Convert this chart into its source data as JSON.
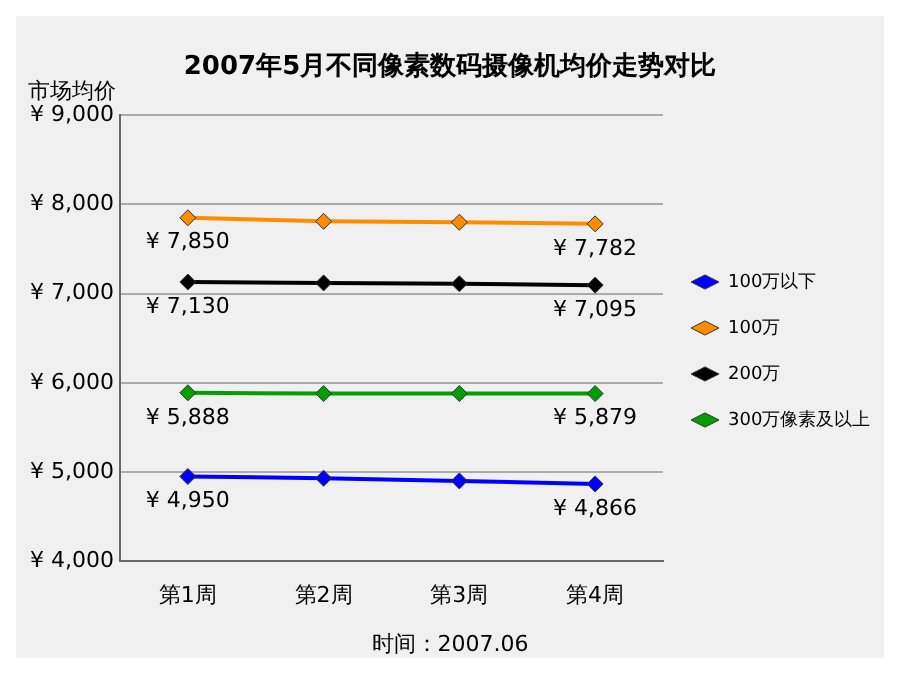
{
  "chart_data": {
    "type": "line",
    "title": "2007年5月不同像素数码摄像机均价走势对比",
    "ylabel": "市场均价",
    "annotations": [
      "时间：2007.06"
    ],
    "categories": [
      "第1周",
      "第2周",
      "第3周",
      "第4周"
    ],
    "series": [
      {
        "name": "100万以下",
        "color": "#0000ff",
        "values": [
          4950,
          4930,
          4900,
          4866
        ],
        "value_labels": [
          "¥ 4,950",
          null,
          null,
          "¥ 4,866"
        ]
      },
      {
        "name": "100万",
        "color": "#ff8c00",
        "values": [
          7850,
          7810,
          7800,
          7782
        ],
        "value_labels": [
          "¥ 7,850",
          null,
          null,
          "¥ 7,782"
        ]
      },
      {
        "name": "200万",
        "color": "#000000",
        "values": [
          7130,
          7120,
          7110,
          7095
        ],
        "value_labels": [
          "¥ 7,130",
          null,
          null,
          "¥ 7,095"
        ]
      },
      {
        "name": "300万像素及以上",
        "color": "#00a000",
        "values": [
          5888,
          5880,
          5880,
          5879
        ],
        "value_labels": [
          "¥ 5,888",
          null,
          null,
          "¥ 5,879"
        ]
      }
    ],
    "ylim": [
      4000,
      9000
    ],
    "yticks": [
      {
        "value": 4000,
        "label": "¥ 4,000"
      },
      {
        "value": 5000,
        "label": "¥ 5,000"
      },
      {
        "value": 6000,
        "label": "¥ 6,000"
      },
      {
        "value": 7000,
        "label": "¥ 7,000"
      },
      {
        "value": 8000,
        "label": "¥ 8,000"
      },
      {
        "value": 9000,
        "label": "¥ 9,000"
      }
    ],
    "grid": "y",
    "legend": "right",
    "marker": "diamond",
    "line_style": "solid"
  }
}
